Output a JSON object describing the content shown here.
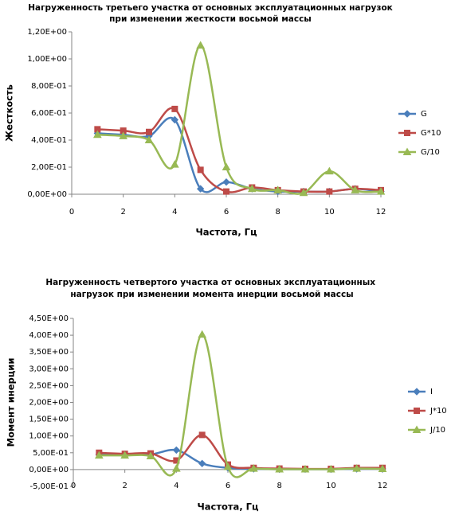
{
  "chart_data": [
    {
      "type": "line",
      "title": "Нагруженность третьего участка  от основных  эксплуатационных  нагрузок при изменении жесткости  восьмой  массы",
      "x_label": "Частота, Гц",
      "y_label": "Жесткость",
      "x": [
        1,
        2,
        3,
        4,
        5,
        6,
        7,
        8,
        9,
        10,
        11,
        12
      ],
      "series": [
        {
          "name": "G",
          "color": "#4a7ebb",
          "marker": "diamond",
          "values": [
            0.45,
            0.44,
            0.43,
            0.55,
            0.04,
            0.09,
            0.04,
            0.02,
            0.02,
            0.02,
            0.04,
            0.02
          ]
        },
        {
          "name": "G*10",
          "color": "#be4b48",
          "marker": "square",
          "values": [
            0.48,
            0.47,
            0.46,
            0.63,
            0.18,
            0.02,
            0.05,
            0.03,
            0.02,
            0.02,
            0.04,
            0.03
          ]
        },
        {
          "name": "G/10",
          "color": "#98b954",
          "marker": "triangle",
          "values": [
            0.44,
            0.43,
            0.4,
            0.22,
            1.1,
            0.2,
            0.04,
            0.03,
            0.01,
            0.17,
            0.03,
            0.02
          ]
        }
      ],
      "xlim": [
        0,
        12
      ],
      "xticks": [
        0,
        2,
        4,
        6,
        8,
        10,
        12
      ],
      "ylim": [
        0,
        1.2
      ],
      "yticks": [
        {
          "value": 0,
          "label": "0,00E+00"
        },
        {
          "value": 0.2,
          "label": "2,00E-01"
        },
        {
          "value": 0.4,
          "label": "4,00E-01"
        },
        {
          "value": 0.6,
          "label": "6,00E-01"
        },
        {
          "value": 0.8,
          "label": "8,00E-01"
        },
        {
          "value": 1.0,
          "label": "1,00E+00"
        },
        {
          "value": 1.2,
          "label": "1,20E+00"
        }
      ],
      "grid": false,
      "legend": "right"
    },
    {
      "type": "line",
      "title": "Нагруженность  четвертого участка  от основных  эксплуатационных  нагрузок при изменении момента инерции восьмой массы",
      "x_label": "Частота, Гц",
      "y_label": "Момент инерции",
      "x": [
        1,
        2,
        3,
        4,
        5,
        6,
        7,
        8,
        9,
        10,
        11,
        12
      ],
      "series": [
        {
          "name": "I",
          "color": "#4a7ebb",
          "marker": "diamond",
          "values": [
            0.45,
            0.45,
            0.45,
            0.58,
            0.18,
            0.05,
            0.02,
            0.01,
            0.01,
            0.01,
            0.02,
            0.02
          ]
        },
        {
          "name": "J*10",
          "color": "#be4b48",
          "marker": "square",
          "values": [
            0.5,
            0.47,
            0.48,
            0.27,
            1.03,
            0.15,
            0.05,
            0.03,
            0.02,
            0.02,
            0.05,
            0.05
          ]
        },
        {
          "name": "J/10",
          "color": "#98b954",
          "marker": "triangle",
          "values": [
            0.42,
            0.42,
            0.4,
            0.03,
            4.02,
            0.08,
            0.03,
            0.01,
            0.01,
            0.01,
            0.03,
            0.02
          ]
        }
      ],
      "xlim": [
        0,
        12
      ],
      "xticks": [
        0,
        2,
        4,
        6,
        8,
        10,
        12
      ],
      "ylim": [
        -0.5,
        4.5
      ],
      "yticks": [
        {
          "value": -0.5,
          "label": "-5,00E-01"
        },
        {
          "value": 0,
          "label": "0,00E+00"
        },
        {
          "value": 0.5,
          "label": "5,00E-01"
        },
        {
          "value": 1.0,
          "label": "1,00E+00"
        },
        {
          "value": 1.5,
          "label": "1,50E+00"
        },
        {
          "value": 2.0,
          "label": "2,00E+00"
        },
        {
          "value": 2.5,
          "label": "2,50E+00"
        },
        {
          "value": 3.0,
          "label": "3,00E+00"
        },
        {
          "value": 3.5,
          "label": "3,50E+00"
        },
        {
          "value": 4.0,
          "label": "4,00E+00"
        },
        {
          "value": 4.5,
          "label": "4,50E+00"
        }
      ],
      "grid": false,
      "legend": "right"
    }
  ]
}
